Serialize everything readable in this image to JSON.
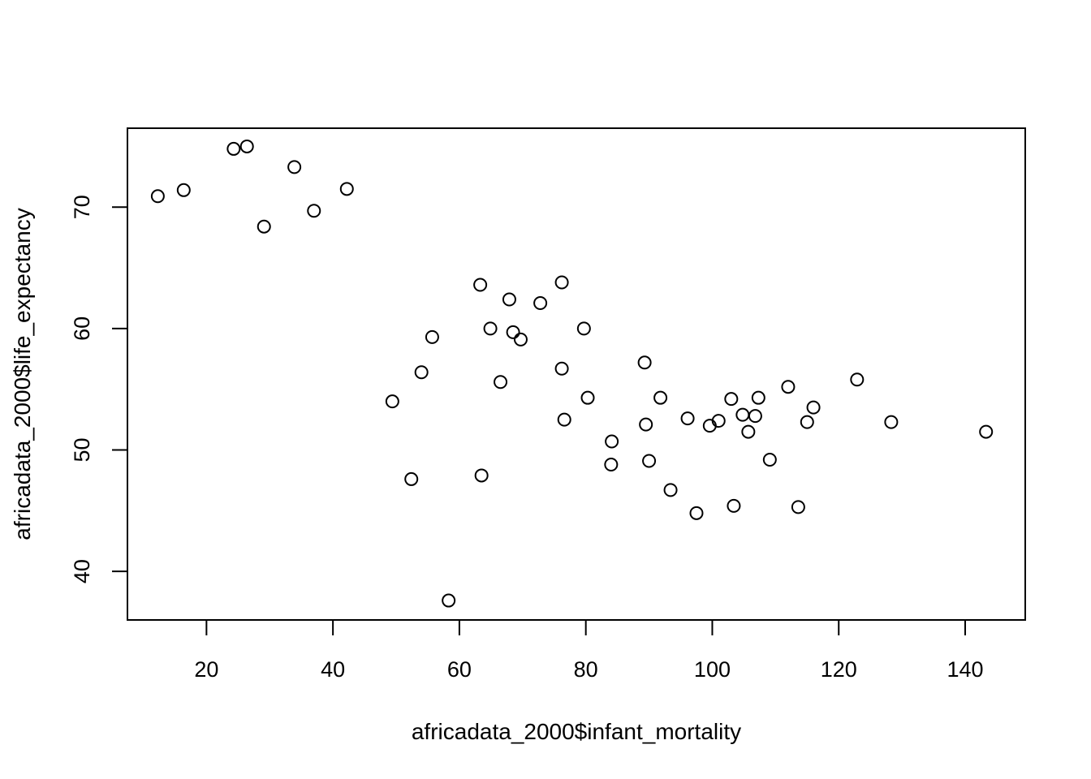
{
  "chart_data": {
    "type": "scatter",
    "title": "",
    "xlabel": "africadata_2000$infant_mortality",
    "ylabel": "africadata_2000$life_expectancy",
    "xlim": [
      7.5,
      149.5
    ],
    "ylim": [
      36,
      76.5
    ],
    "xticks": [
      20,
      40,
      60,
      80,
      100,
      120,
      140
    ],
    "yticks": [
      40,
      50,
      60,
      70
    ],
    "grid": false,
    "legend": "none",
    "colors": {
      "point_stroke": "#000000",
      "axis": "#000000",
      "background": "#ffffff"
    },
    "points": [
      {
        "x": 12.3,
        "y": 70.9
      },
      {
        "x": 16.4,
        "y": 71.4
      },
      {
        "x": 24.3,
        "y": 74.8
      },
      {
        "x": 26.4,
        "y": 75.0
      },
      {
        "x": 29.1,
        "y": 68.4
      },
      {
        "x": 33.9,
        "y": 73.3
      },
      {
        "x": 37.0,
        "y": 69.7
      },
      {
        "x": 42.2,
        "y": 71.5
      },
      {
        "x": 49.4,
        "y": 54.0
      },
      {
        "x": 52.4,
        "y": 47.6
      },
      {
        "x": 54.0,
        "y": 56.4
      },
      {
        "x": 55.7,
        "y": 59.3
      },
      {
        "x": 58.3,
        "y": 37.6
      },
      {
        "x": 63.3,
        "y": 63.6
      },
      {
        "x": 63.5,
        "y": 47.9
      },
      {
        "x": 64.9,
        "y": 60.0
      },
      {
        "x": 66.5,
        "y": 55.6
      },
      {
        "x": 67.9,
        "y": 62.4
      },
      {
        "x": 68.5,
        "y": 59.7
      },
      {
        "x": 69.7,
        "y": 59.1
      },
      {
        "x": 72.8,
        "y": 62.1
      },
      {
        "x": 76.2,
        "y": 63.8
      },
      {
        "x": 76.2,
        "y": 56.7
      },
      {
        "x": 76.6,
        "y": 52.5
      },
      {
        "x": 79.7,
        "y": 60.0
      },
      {
        "x": 80.3,
        "y": 54.3
      },
      {
        "x": 84.0,
        "y": 48.8
      },
      {
        "x": 84.1,
        "y": 50.7
      },
      {
        "x": 89.3,
        "y": 57.2
      },
      {
        "x": 89.5,
        "y": 52.1
      },
      {
        "x": 90.0,
        "y": 49.1
      },
      {
        "x": 91.8,
        "y": 54.3
      },
      {
        "x": 93.4,
        "y": 46.7
      },
      {
        "x": 96.1,
        "y": 52.6
      },
      {
        "x": 97.5,
        "y": 44.8
      },
      {
        "x": 99.6,
        "y": 52.0
      },
      {
        "x": 101.0,
        "y": 52.4
      },
      {
        "x": 103.0,
        "y": 54.2
      },
      {
        "x": 103.4,
        "y": 45.4
      },
      {
        "x": 104.8,
        "y": 52.9
      },
      {
        "x": 105.7,
        "y": 51.5
      },
      {
        "x": 106.8,
        "y": 52.8
      },
      {
        "x": 107.3,
        "y": 54.3
      },
      {
        "x": 109.1,
        "y": 49.2
      },
      {
        "x": 112.0,
        "y": 55.2
      },
      {
        "x": 113.6,
        "y": 45.3
      },
      {
        "x": 115.0,
        "y": 52.3
      },
      {
        "x": 116.0,
        "y": 53.5
      },
      {
        "x": 122.9,
        "y": 55.8
      },
      {
        "x": 128.3,
        "y": 52.3
      },
      {
        "x": 143.3,
        "y": 51.5
      }
    ]
  }
}
